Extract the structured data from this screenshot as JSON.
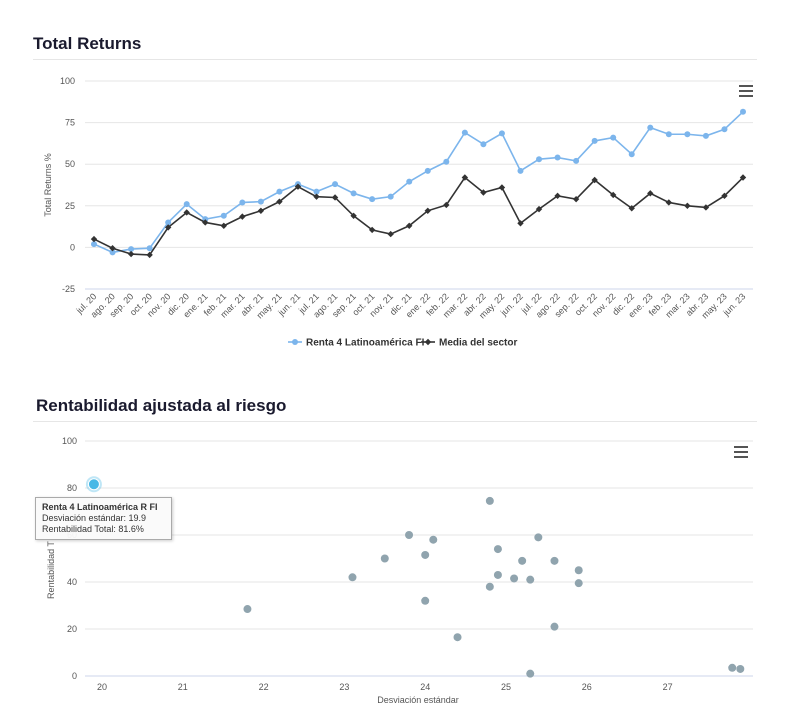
{
  "titles": {
    "returns": "Total Returns",
    "risk": "Rentabilidad ajustada al riesgo"
  },
  "colors": {
    "fund": "#7cb5ec",
    "sector": "#333333",
    "scatter": "#90a4ae",
    "highlight": "#47b8e6"
  },
  "icons": {
    "menu": "hamburger-menu-icon"
  },
  "chart_data": [
    {
      "type": "line",
      "ylabel": "Total Returns %",
      "ylim": [
        -25,
        100
      ],
      "yticks": [
        -25,
        0,
        25,
        50,
        75,
        100
      ],
      "grid": true,
      "legend_position": "bottom",
      "categories": [
        "jul. 20",
        "ago. 20",
        "sep. 20",
        "oct. 20",
        "nov. 20",
        "dic. 20",
        "ene. 21",
        "feb. 21",
        "mar. 21",
        "abr. 21",
        "may. 21",
        "jun. 21",
        "jul. 21",
        "ago. 21",
        "sep. 21",
        "oct. 21",
        "nov. 21",
        "dic. 21",
        "ene. 22",
        "feb. 22",
        "mar. 22",
        "abr. 22",
        "may. 22",
        "jun. 22",
        "jul. 22",
        "ago. 22",
        "sep. 22",
        "oct. 22",
        "nov. 22",
        "dic. 22",
        "ene. 23",
        "feb. 23",
        "mar. 23",
        "abr. 23",
        "may. 23",
        "jun. 23"
      ],
      "series": [
        {
          "name": "Renta 4 Latinoamérica FI",
          "marker": "circle",
          "values": [
            2,
            -3,
            -1,
            -0.5,
            15,
            26,
            17,
            19,
            27,
            27.5,
            33.5,
            38,
            33.5,
            38,
            32.5,
            29,
            30.5,
            39.5,
            46,
            51.5,
            69,
            62,
            68.5,
            46,
            53,
            54,
            52,
            64,
            66,
            56,
            72,
            68,
            68,
            67,
            71,
            81.5
          ]
        },
        {
          "name": "Media del sector",
          "marker": "diamond",
          "values": [
            5,
            -0.5,
            -4,
            -4.5,
            12,
            21,
            15,
            13,
            18.5,
            22,
            27.5,
            36.5,
            30.5,
            30,
            19,
            10.5,
            8,
            13,
            22,
            25.5,
            42,
            33,
            36,
            14.5,
            23,
            31,
            29,
            40.5,
            31.5,
            23.5,
            32.5,
            27,
            25,
            24,
            31,
            42
          ]
        }
      ]
    },
    {
      "type": "scatter",
      "xlabel": "Desviación estándar",
      "ylabel": "Rentabilidad T",
      "xlim": [
        19.8,
        28
      ],
      "ylim": [
        0,
        100
      ],
      "xticks": [
        20,
        21,
        22,
        23,
        24,
        25,
        26,
        27
      ],
      "yticks": [
        0,
        20,
        40,
        60,
        80,
        100
      ],
      "grid": true,
      "points": [
        {
          "x": 21.8,
          "y": 28.5
        },
        {
          "x": 23.1,
          "y": 42
        },
        {
          "x": 23.5,
          "y": 50
        },
        {
          "x": 23.8,
          "y": 60
        },
        {
          "x": 24.0,
          "y": 51.5
        },
        {
          "x": 24.1,
          "y": 58
        },
        {
          "x": 24.0,
          "y": 32
        },
        {
          "x": 24.4,
          "y": 16.5
        },
        {
          "x": 24.8,
          "y": 74.5
        },
        {
          "x": 24.8,
          "y": 38
        },
        {
          "x": 24.9,
          "y": 43
        },
        {
          "x": 24.9,
          "y": 54
        },
        {
          "x": 25.1,
          "y": 41.5
        },
        {
          "x": 25.2,
          "y": 49
        },
        {
          "x": 25.3,
          "y": 41
        },
        {
          "x": 25.4,
          "y": 59
        },
        {
          "x": 25.3,
          "y": 1
        },
        {
          "x": 25.6,
          "y": 49
        },
        {
          "x": 25.6,
          "y": 21
        },
        {
          "x": 25.9,
          "y": 45
        },
        {
          "x": 25.9,
          "y": 39.5
        },
        {
          "x": 27.8,
          "y": 3.5
        },
        {
          "x": 27.9,
          "y": 3
        }
      ],
      "highlight": {
        "x": 19.9,
        "y": 81.6
      }
    }
  ],
  "tooltip": {
    "name": "Renta 4 Latinoamérica R FI",
    "line1": "Desviación estándar: 19.9",
    "line2": "Rentabilidad Total: 81.6%"
  }
}
